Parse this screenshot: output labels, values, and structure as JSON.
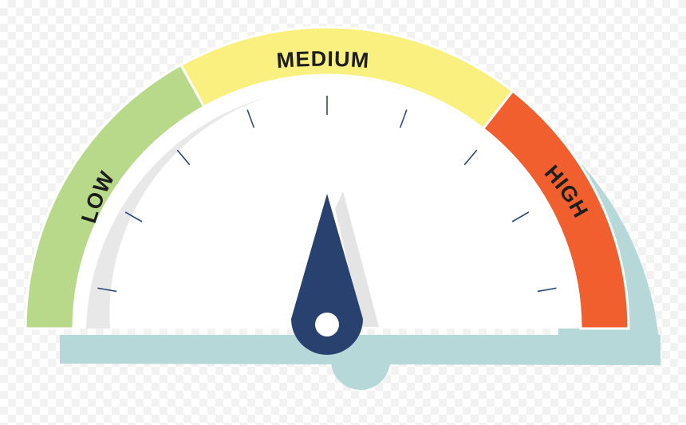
{
  "gauge": {
    "zones": [
      {
        "key": "low",
        "label": "LOW",
        "color": "#b8d98a"
      },
      {
        "key": "medium",
        "label": "MEDIUM",
        "color": "#f9f080"
      },
      {
        "key": "high",
        "label": "HIGH",
        "color": "#f15f2e"
      }
    ],
    "needle_color": "#28416f",
    "base_color": "#b7d8d8",
    "shadow_color": "#e8e8e8",
    "tick_color": "#2d4a7c",
    "level_fraction": 0.5
  }
}
